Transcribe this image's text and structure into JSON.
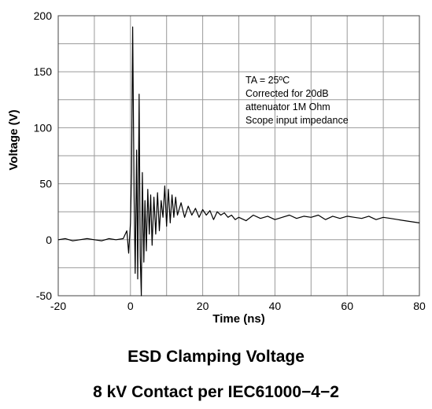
{
  "chart_data": {
    "type": "line",
    "title": "",
    "xlabel": "Time  (ns)",
    "ylabel": "Voltage (V)",
    "xlim": [
      -20,
      80
    ],
    "ylim": [
      -50,
      200
    ],
    "xticks": [
      -20,
      0,
      20,
      40,
      60,
      80
    ],
    "yticks": [
      -50,
      0,
      50,
      100,
      150,
      200
    ],
    "grid": true,
    "annotation": [
      "TA = 25ºC",
      "Corrected for 20dB",
      "attenuator 1M Ohm",
      "Scope input impedance"
    ],
    "series": [
      {
        "color": "#000000",
        "x": [
          -20,
          -18,
          -16,
          -14,
          -12,
          -10,
          -8,
          -6,
          -4,
          -2,
          -1,
          -0.5,
          0,
          0.3,
          0.6,
          1.0,
          1.3,
          1.7,
          2.0,
          2.4,
          2.7,
          3.0,
          3.3,
          3.7,
          4.0,
          4.4,
          4.8,
          5.2,
          5.6,
          6.0,
          6.5,
          7.0,
          7.5,
          8.0,
          8.5,
          9.0,
          9.5,
          10.0,
          10.5,
          11.0,
          11.5,
          12.0,
          12.5,
          13.0,
          14,
          15,
          16,
          17,
          18,
          19,
          20,
          21,
          22,
          23,
          24,
          25,
          26,
          27,
          28,
          29,
          30,
          32,
          34,
          36,
          38,
          40,
          42,
          44,
          46,
          48,
          50,
          52,
          54,
          56,
          58,
          60,
          62,
          64,
          66,
          68,
          70,
          72,
          74,
          76,
          78,
          80
        ],
        "y": [
          0,
          1,
          -1,
          0,
          1,
          0,
          -1,
          1,
          0,
          1,
          8,
          -12,
          15,
          60,
          190,
          40,
          -30,
          80,
          -35,
          130,
          -15,
          -50,
          60,
          -20,
          35,
          -10,
          45,
          5,
          40,
          -5,
          38,
          5,
          42,
          8,
          35,
          20,
          48,
          12,
          45,
          15,
          40,
          20,
          38,
          22,
          33,
          20,
          30,
          22,
          28,
          20,
          27,
          22,
          26,
          18,
          25,
          22,
          24,
          20,
          22,
          18,
          20,
          17,
          22,
          19,
          21,
          18,
          20,
          22,
          19,
          21,
          20,
          22,
          18,
          21,
          19,
          21,
          20,
          19,
          21,
          18,
          20,
          19,
          18,
          17,
          16,
          15
        ]
      }
    ]
  },
  "captions": {
    "line1": "ESD Clamping Voltage",
    "line2": "8 kV Contact per IEC61000−4−2"
  }
}
